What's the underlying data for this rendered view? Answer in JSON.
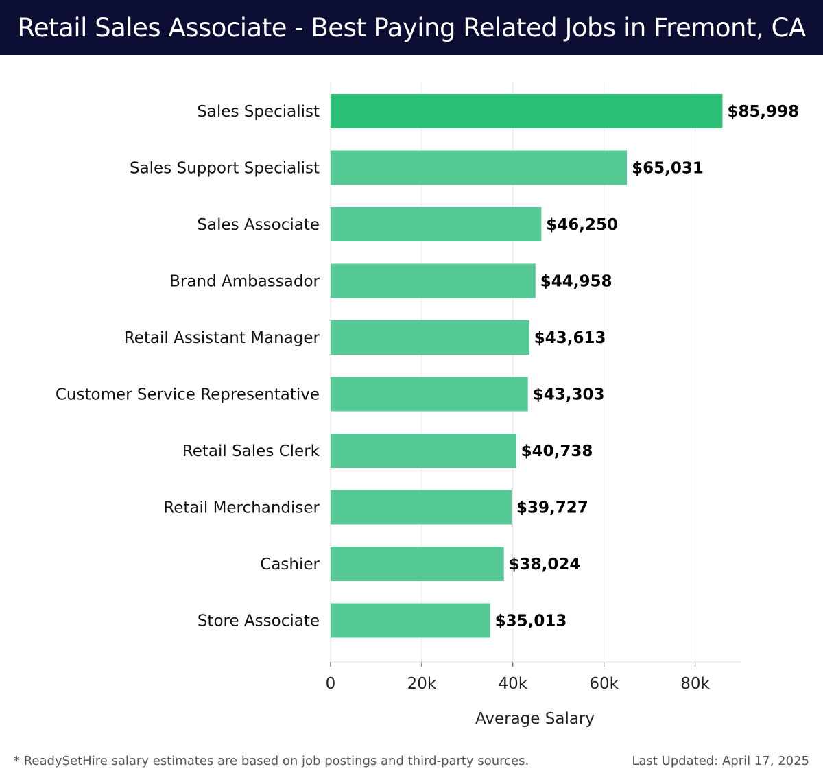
{
  "header": {
    "title": "Retail Sales Associate - Best Paying Related Jobs in Fremont, CA"
  },
  "chart_data": {
    "type": "bar",
    "orientation": "horizontal",
    "title": "Retail Sales Associate - Best Paying Related Jobs in Fremont, CA",
    "xlabel": "Average Salary",
    "ylabel": "",
    "categories": [
      "Sales Specialist",
      "Sales Support Specialist",
      "Sales Associate",
      "Brand Ambassador",
      "Retail Assistant Manager",
      "Customer Service Representative",
      "Retail Sales Clerk",
      "Retail Merchandiser",
      "Cashier",
      "Store Associate"
    ],
    "values": [
      85998,
      65031,
      46250,
      44958,
      43613,
      43303,
      40738,
      39727,
      38024,
      35013
    ],
    "value_labels": [
      "$85,998",
      "$65,031",
      "$46,250",
      "$44,958",
      "$43,613",
      "$43,303",
      "$40,738",
      "$39,727",
      "$38,024",
      "$35,013"
    ],
    "xlim": [
      0,
      90000
    ],
    "x_ticks": [
      0,
      20000,
      40000,
      60000,
      80000
    ],
    "x_tick_labels": [
      "0",
      "20k",
      "40k",
      "60k",
      "80k"
    ],
    "grid": "vertical",
    "legend": "none",
    "colors": {
      "top_bar": "#2bbf77",
      "bar": "#54c993",
      "grid": "#e3e3e3"
    }
  },
  "footer": {
    "note": "* ReadySetHire salary estimates are based on job postings and third-party sources.",
    "updated": "Last Updated: April 17, 2025"
  }
}
